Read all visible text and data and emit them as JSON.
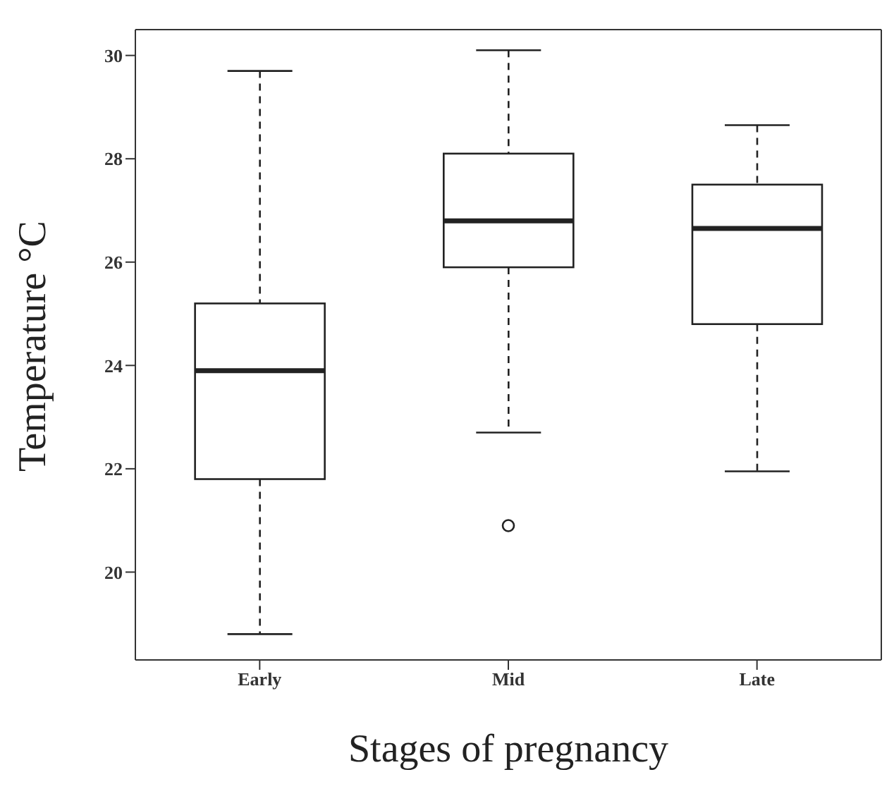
{
  "chart_data": {
    "type": "box",
    "xlabel": "Stages of pregnancy",
    "ylabel": "Temperature °C",
    "categories": [
      "Early",
      "Mid",
      "Late"
    ],
    "boxes": [
      {
        "low": 18.8,
        "q1": 21.8,
        "median": 23.9,
        "q3": 25.2,
        "high": 29.7
      },
      {
        "low": 22.7,
        "q1": 25.9,
        "median": 26.8,
        "q3": 28.1,
        "high": 30.1,
        "outliers": [
          20.9
        ]
      },
      {
        "low": 21.95,
        "q1": 24.8,
        "median": 26.65,
        "q3": 27.5,
        "high": 28.65
      }
    ],
    "color": "#222222",
    "ylim": [
      18.3,
      30.5
    ],
    "yticks": [
      20,
      22,
      24,
      26,
      28,
      30
    ],
    "grid": false,
    "legend": false
  }
}
